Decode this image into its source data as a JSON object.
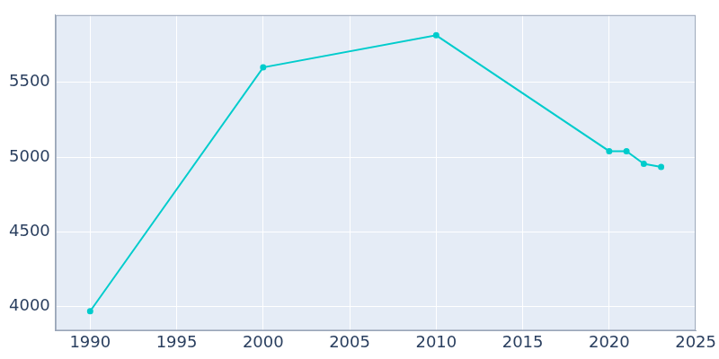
{
  "chart_data": {
    "type": "line",
    "x": [
      1990,
      2000,
      2010,
      2020,
      2021,
      2022,
      2023
    ],
    "values": [
      3970,
      5600,
      5815,
      5040,
      5040,
      4955,
      4935
    ],
    "color": "#00cccc",
    "marker": "circle",
    "xlim": [
      1988,
      2025
    ],
    "xticks": [
      1990,
      1995,
      2000,
      2005,
      2010,
      2015,
      2020,
      2025
    ],
    "ylim": [
      3840,
      5950
    ],
    "yticks": [
      4000,
      4500,
      5000,
      5500
    ],
    "grid": true
  }
}
